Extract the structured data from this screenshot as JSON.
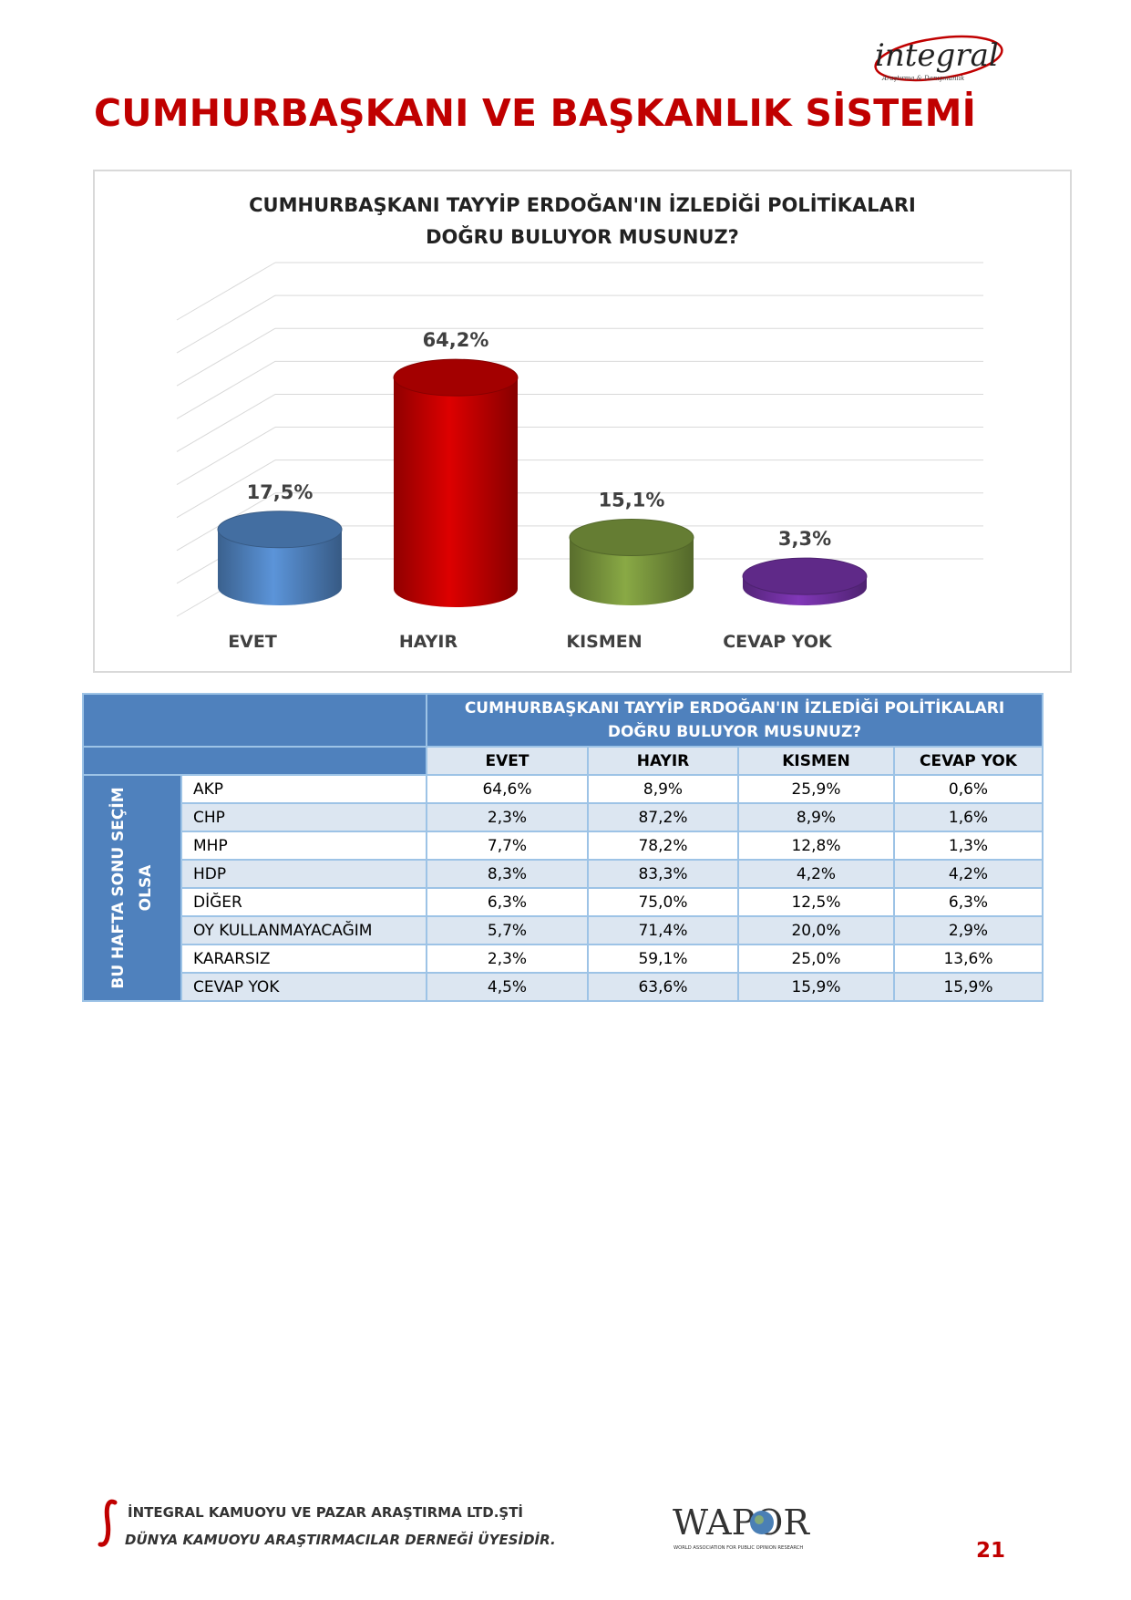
{
  "logo_text": "integral",
  "page_title": "CUMHURBAŞKANI VE BAŞKANLIK SİSTEMİ",
  "chart_data": {
    "type": "bar",
    "title_lines": [
      "CUMHURBAŞKANI TAYYİP ERDOĞAN'IN İZLEDİĞİ POLİTİKALARI",
      "DOĞRU BULUYOR MUSUNUZ?"
    ],
    "categories": [
      "EVET",
      "HAYIR",
      "KISMEN",
      "CEVAP YOK"
    ],
    "values": [
      17.5,
      64.2,
      15.1,
      3.3
    ],
    "value_labels": [
      "17,5%",
      "64,2%",
      "15,1%",
      "3,3%"
    ],
    "colors": [
      "#4f81bd",
      "#c00000",
      "#77933c",
      "#7030a0"
    ],
    "ylim": [
      0,
      90
    ],
    "grid": true,
    "style": "3d-cylinder"
  },
  "table": {
    "question_lines": [
      "CUMHURBAŞKANI TAYYİP ERDOĞAN'IN İZLEDİĞİ POLİTİKALARI",
      "DOĞRU BULUYOR MUSUNUZ?"
    ],
    "side_label_lines": [
      "BU HAFTA SONU SEÇİM",
      "OLSA"
    ],
    "columns": [
      "EVET",
      "HAYIR",
      "KISMEN",
      "CEVAP YOK"
    ],
    "rows": [
      {
        "party": "AKP",
        "values": [
          "64,6%",
          "8,9%",
          "25,9%",
          "0,6%"
        ]
      },
      {
        "party": "CHP",
        "values": [
          "2,3%",
          "87,2%",
          "8,9%",
          "1,6%"
        ]
      },
      {
        "party": "MHP",
        "values": [
          "7,7%",
          "78,2%",
          "12,8%",
          "1,3%"
        ]
      },
      {
        "party": "HDP",
        "values": [
          "8,3%",
          "83,3%",
          "4,2%",
          "4,2%"
        ]
      },
      {
        "party": "DİĞER",
        "values": [
          "6,3%",
          "75,0%",
          "12,5%",
          "6,3%"
        ]
      },
      {
        "party": "OY KULLANMAYACAĞIM",
        "values": [
          "5,7%",
          "71,4%",
          "20,0%",
          "2,9%"
        ]
      },
      {
        "party": "KARARSIZ",
        "values": [
          "2,3%",
          "59,1%",
          "25,0%",
          "13,6%"
        ]
      },
      {
        "party": "CEVAP YOK",
        "values": [
          "4,5%",
          "63,6%",
          "15,9%",
          "15,9%"
        ]
      }
    ]
  },
  "footer": {
    "company": "İNTEGRAL KAMUOYU VE PAZAR ARAŞTIRMA LTD.ŞTİ",
    "membership": "DÜNYA KAMUOYU ARAŞTIRMACILAR DERNEĞİ ÜYESİDİR.",
    "wapor_text": "WAPOR",
    "wapor_subtitle": "WORLD ASSOCIATION FOR PUBLIC OPINION RESEARCH",
    "page_number": "21"
  }
}
